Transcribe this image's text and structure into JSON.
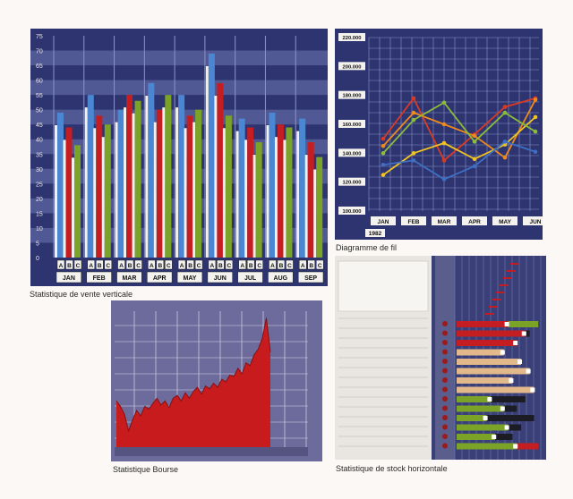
{
  "colors": {
    "page_bg": "#fbf8f5",
    "navy_bg": "#2d3470",
    "stripe": "#6f78b5",
    "grid_line": "#8c93c9",
    "bar_a": "#4a86d2",
    "bar_b": "#c41e22",
    "bar_c": "#7aa327",
    "bar_white": "#f2f0ec",
    "line_red": "#d93a24",
    "line_orange": "#ef8a1b",
    "line_yellow": "#f1c320",
    "line_green": "#8cbd3a",
    "line_blue": "#3f6fc2",
    "bourse_bg": "#6d6b9c",
    "bourse_fill": "#c81b1d"
  },
  "captions": {
    "vertical": "Statistique de vente verticale",
    "wire": "Diagramme de fil",
    "bourse": "Statistique Bourse",
    "stock": "Statistique de stock horizontale"
  },
  "chart_data": [
    {
      "type": "bar",
      "caption_key": "vertical",
      "categories": [
        "JAN",
        "FEB",
        "MAR",
        "APR",
        "MAY",
        "JUN",
        "JUL",
        "AUG",
        "SEP"
      ],
      "sub_labels": [
        "A",
        "B",
        "C"
      ],
      "ylim": [
        0,
        75
      ],
      "yticks": [
        0,
        5,
        10,
        15,
        20,
        25,
        30,
        35,
        40,
        45,
        50,
        55,
        60,
        65,
        70,
        75
      ],
      "series": [
        {
          "values": [
            49,
            55,
            50,
            59,
            55,
            69,
            47,
            49,
            47
          ],
          "color_key": "bar_a"
        },
        {
          "values": [
            44,
            48,
            55,
            50,
            48,
            59,
            44,
            45,
            39
          ],
          "color_key": "bar_b"
        },
        {
          "values": [
            38,
            45,
            53,
            55,
            50,
            48,
            39,
            44,
            34
          ],
          "color_key": "bar_c"
        }
      ]
    },
    {
      "type": "line",
      "caption_key": "wire",
      "year_label": "1982",
      "categories": [
        "JAN",
        "FEB",
        "MAR",
        "APR",
        "MAY",
        "JUN"
      ],
      "ylim": [
        100000,
        220000
      ],
      "yticks": [
        "100.000",
        "120.000",
        "140.000",
        "160.000",
        "180.000",
        "200.000",
        "220.000"
      ],
      "series": [
        {
          "values": [
            150000,
            178000,
            135000,
            153000,
            172000,
            178000
          ],
          "color_key": "line_red"
        },
        {
          "values": [
            145000,
            168000,
            160000,
            152000,
            137000,
            177000
          ],
          "color_key": "line_orange"
        },
        {
          "values": [
            125000,
            140000,
            147000,
            136000,
            146000,
            165000
          ],
          "color_key": "line_yellow"
        },
        {
          "values": [
            140000,
            163000,
            175000,
            148000,
            168000,
            155000
          ],
          "color_key": "line_green"
        },
        {
          "values": [
            132000,
            135000,
            122000,
            131000,
            148000,
            141000
          ],
          "color_key": "line_blue"
        }
      ]
    },
    {
      "type": "area",
      "caption_key": "bourse",
      "x_labels": [
        "",
        "",
        "",
        "",
        "",
        "",
        "",
        "",
        ""
      ],
      "ylim": [
        0,
        100
      ],
      "values": [
        34,
        30,
        24,
        12,
        20,
        27,
        23,
        30,
        28,
        32,
        36,
        31,
        34,
        29,
        36,
        38,
        34,
        40,
        36,
        41,
        44,
        39,
        45,
        43,
        47,
        44,
        50,
        48,
        53,
        52,
        58,
        54,
        62,
        60,
        68,
        72,
        80,
        95,
        70
      ]
    },
    {
      "type": "table",
      "caption_key": "stock",
      "rows": [
        {
          "bars": [
            {
              "v": 0.6,
              "c": "bar_b"
            },
            {
              "v": 0.95,
              "c": "bar_c"
            }
          ]
        },
        {
          "bars": [
            {
              "v": 0.8,
              "c": "bar_b"
            },
            {
              "v": 0.85,
              "c": "#1b1c24"
            }
          ]
        },
        {
          "bars": [
            {
              "v": 0.7,
              "c": "bar_b"
            },
            {
              "v": 0.6,
              "c": "#1b1c24"
            }
          ]
        },
        {
          "bars": [
            {
              "v": 0.55,
              "c": "#e3b98c"
            }
          ]
        },
        {
          "bars": [
            {
              "v": 0.75,
              "c": "#e3b98c"
            }
          ]
        },
        {
          "bars": [
            {
              "v": 0.85,
              "c": "#e3b98c"
            }
          ]
        },
        {
          "bars": [
            {
              "v": 0.65,
              "c": "#e3b98c"
            }
          ]
        },
        {
          "bars": [
            {
              "v": 0.9,
              "c": "#e3b98c"
            }
          ]
        },
        {
          "bars": [
            {
              "v": 0.4,
              "c": "bar_c"
            },
            {
              "v": 0.8,
              "c": "#1b1c24"
            }
          ]
        },
        {
          "bars": [
            {
              "v": 0.55,
              "c": "bar_c"
            },
            {
              "v": 0.7,
              "c": "#1b1c24"
            }
          ]
        },
        {
          "bars": [
            {
              "v": 0.35,
              "c": "bar_c"
            },
            {
              "v": 0.9,
              "c": "#1b1c24"
            }
          ]
        },
        {
          "bars": [
            {
              "v": 0.6,
              "c": "bar_c"
            },
            {
              "v": 0.75,
              "c": "#1b1c24"
            }
          ]
        },
        {
          "bars": [
            {
              "v": 0.45,
              "c": "bar_c"
            },
            {
              "v": 0.65,
              "c": "#1b1c24"
            }
          ]
        },
        {
          "bars": [
            {
              "v": 0.7,
              "c": "bar_c"
            },
            {
              "v": 0.95,
              "c": "bar_b"
            }
          ]
        }
      ]
    }
  ]
}
